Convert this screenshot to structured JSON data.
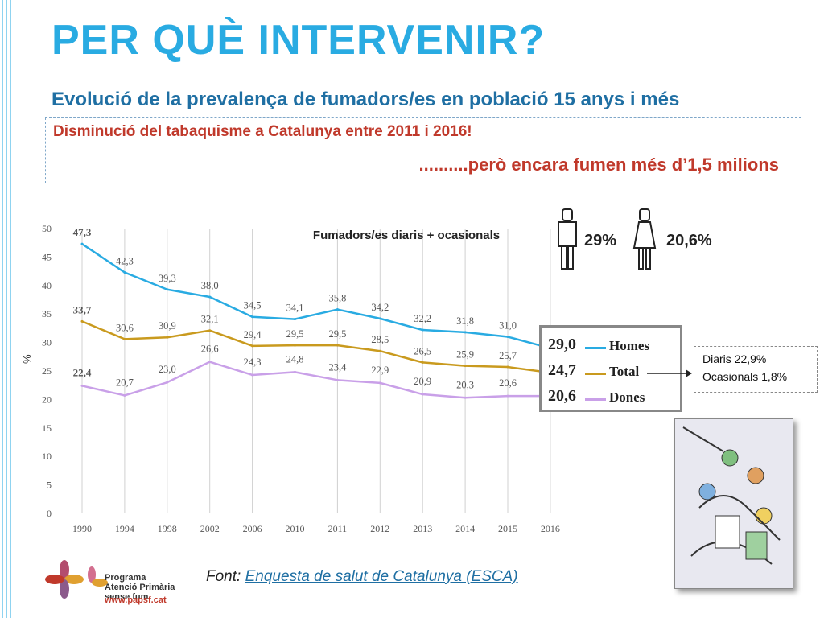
{
  "header": {
    "title": "PER QUÈ INTERVENIR?",
    "subtitle": "Evolució de la prevalença de fumadors/es en població 15 anys i més"
  },
  "callout": {
    "line1": "Disminució del tabaquisme a Catalunya entre 2011 i 2016!",
    "line2": "..........però encara fumen més d’1,5 milions"
  },
  "figures": {
    "men_pct": "29%",
    "women_pct": "20,6%"
  },
  "legend": {
    "items": [
      {
        "value": "29,0",
        "name": "Homes",
        "color": "#29abe2"
      },
      {
        "value": "24,7",
        "name": "Total",
        "color": "#c99a1e"
      },
      {
        "value": "20,6",
        "name": "Dones",
        "color": "#c9a0e8"
      }
    ]
  },
  "detail": {
    "line1": "Diaris 22,9%",
    "line2": "Ocasionals 1,8%"
  },
  "source": {
    "prefix": "Font:",
    "link": "Enquesta de salut de Catalunya (ESCA)"
  },
  "logo": {
    "line1": "Programa",
    "line2": "Atenció Primària",
    "line3": "sense fum",
    "url": "www.papsf.cat"
  },
  "chart_data": {
    "type": "line",
    "title": "Fumadors/es  diaris + ocasionals",
    "xlabel": "",
    "ylabel": "%",
    "ylim": [
      0,
      50
    ],
    "yticks": [
      0,
      5,
      10,
      15,
      20,
      25,
      30,
      35,
      40,
      45,
      50
    ],
    "categories": [
      "1990",
      "1994",
      "1998",
      "2002",
      "2006",
      "2010",
      "2011",
      "2012",
      "2013",
      "2014",
      "2015",
      "2016"
    ],
    "grid": "vertical",
    "series": [
      {
        "name": "Homes",
        "color": "#29abe2",
        "values": [
          47.3,
          42.3,
          39.3,
          38.0,
          34.5,
          34.1,
          35.8,
          34.2,
          32.2,
          31.8,
          31.0,
          29.0
        ],
        "labels": [
          "47,3",
          "42,3",
          "39,3",
          "38,0",
          "34,5",
          "34,1",
          "35,8",
          "34,2",
          "32,2",
          "31,8",
          "31,0",
          ""
        ]
      },
      {
        "name": "Total",
        "color": "#c99a1e",
        "values": [
          33.7,
          30.6,
          30.9,
          32.1,
          29.4,
          29.5,
          29.5,
          28.5,
          26.5,
          25.9,
          25.7,
          24.7
        ],
        "labels": [
          "33,7",
          "30,6",
          "30,9",
          "32,1",
          "29,4",
          "29,5",
          "29,5",
          "28,5",
          "26,5",
          "25,9",
          "25,7",
          ""
        ]
      },
      {
        "name": "Dones",
        "color": "#c9a0e8",
        "values": [
          22.4,
          20.7,
          23.0,
          26.6,
          24.3,
          24.8,
          23.4,
          22.9,
          20.9,
          20.3,
          20.6,
          20.6
        ],
        "labels": [
          "22,4",
          "20,7",
          "23,0",
          "26,6",
          "24,3",
          "24,8",
          "23,4",
          "22,9",
          "20,9",
          "20,3",
          "20,6",
          ""
        ]
      }
    ]
  }
}
